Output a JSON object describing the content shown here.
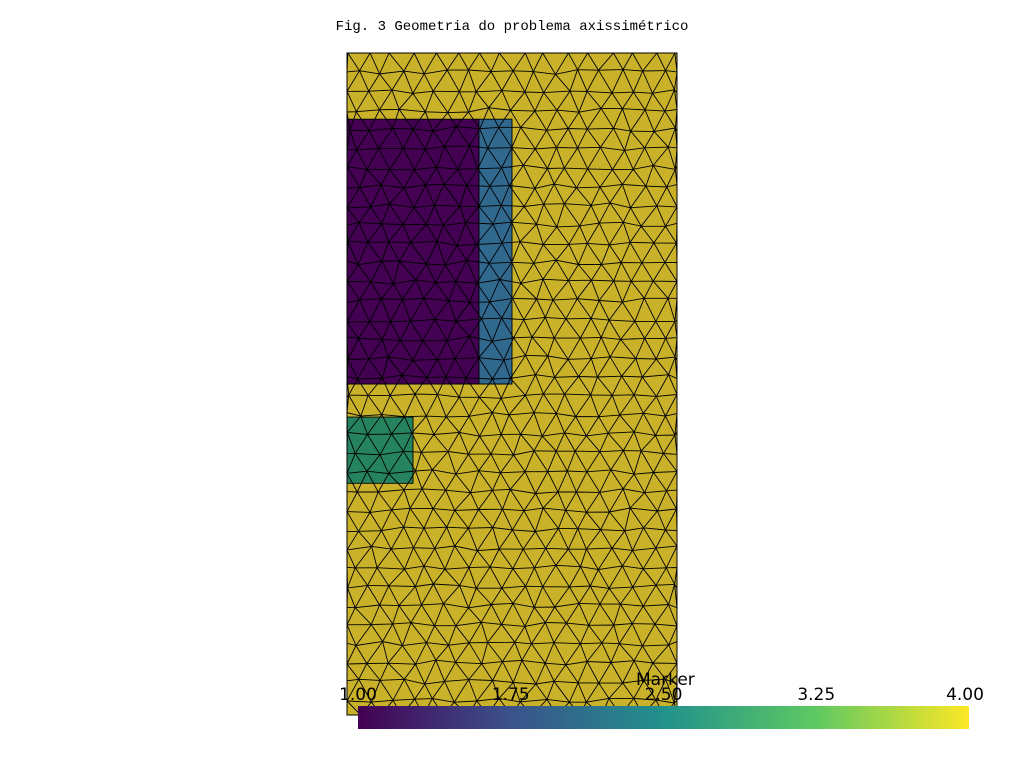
{
  "title": "Fig. 3 Geometria do problema axissimétrico",
  "chart_data": {
    "type": "mesh",
    "title": "Fig. 3 Geometria do problema axissimétrico",
    "domain": {
      "x": [
        0,
        1
      ],
      "y": [
        0,
        2
      ]
    },
    "regions": [
      {
        "marker": 4,
        "x": [
          0.0,
          1.0
        ],
        "y": [
          0.0,
          2.0
        ]
      },
      {
        "marker": 1,
        "x": [
          0.0,
          0.4
        ],
        "y": [
          1.0,
          1.8
        ]
      },
      {
        "marker": 2,
        "x": [
          0.4,
          0.5
        ],
        "y": [
          1.0,
          1.8
        ]
      },
      {
        "marker": 3,
        "x": [
          0.0,
          0.2
        ],
        "y": [
          0.7,
          0.9
        ]
      }
    ],
    "colors": {
      "1": "#440154",
      "2": "#31688e",
      "3": "#26835f",
      "4": "#c9b12a",
      "edge": "#000000"
    },
    "colorbar": {
      "title": "Marker",
      "range": [
        1.0,
        4.0
      ],
      "ticks": [
        "1.00",
        "1.75",
        "2.50",
        "3.25",
        "4.00"
      ],
      "colormap": "viridis",
      "stops": [
        "#440154",
        "#3b528b",
        "#21918c",
        "#5ec962",
        "#fde725"
      ]
    }
  }
}
